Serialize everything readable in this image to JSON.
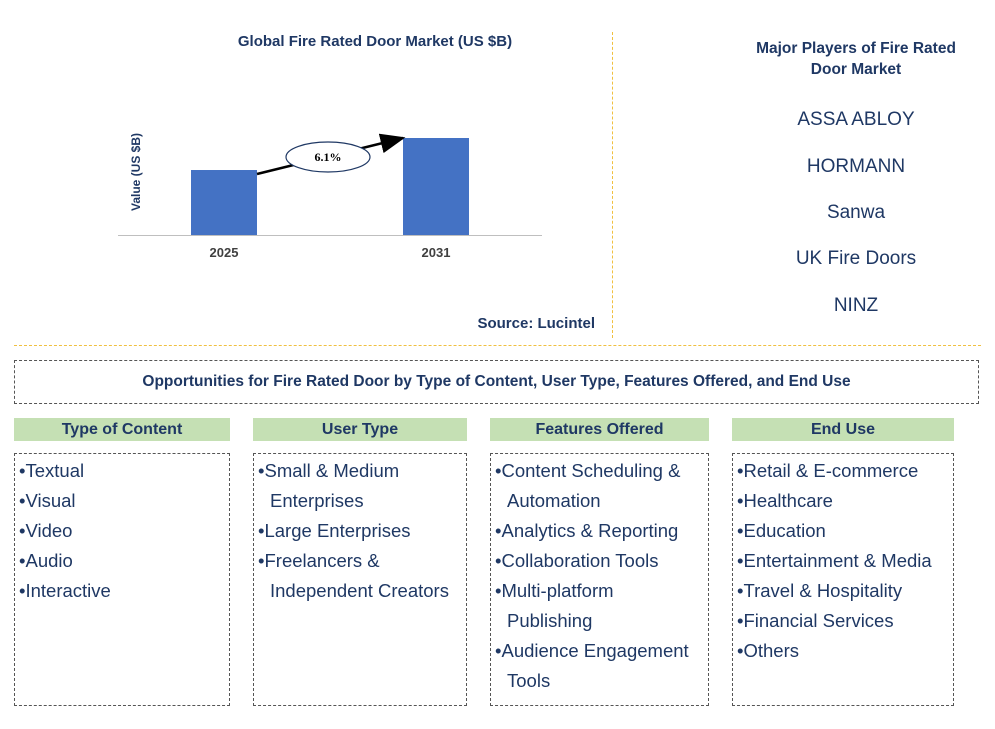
{
  "chart_data": {
    "type": "bar",
    "title": "Global Fire Rated Door Market (US $B)",
    "ylabel": "Value (US $B)",
    "categories": [
      "2025",
      "2031"
    ],
    "values": [
      0.67,
      1.0
    ],
    "cagr_label": "6.1%",
    "bar_color": "#4472c4",
    "source": "Source: Lucintel"
  },
  "players": {
    "title_line1": "Major Players of Fire Rated",
    "title_line2": "Door Market",
    "items": [
      "ASSA ABLOY",
      "HORMANN",
      "Sanwa",
      "UK Fire Doors",
      "NINZ"
    ]
  },
  "opportunities": {
    "title": "Opportunities for Fire Rated Door by Type of Content, User Type, Features Offered, and End Use",
    "categories": [
      {
        "header": "Type of Content",
        "items": [
          "Textual",
          "Visual",
          "Video",
          "Audio",
          "Interactive"
        ]
      },
      {
        "header": "User Type",
        "items": [
          "Small & Medium Enterprises",
          "Large Enterprises",
          "Freelancers & Independent Creators"
        ]
      },
      {
        "header": "Features Offered",
        "items": [
          "Content Scheduling & Automation",
          "Analytics & Reporting",
          "Collaboration Tools",
          "Multi-platform Publishing",
          "Audience Engagement Tools"
        ]
      },
      {
        "header": "End Use",
        "items": [
          "Retail & E-commerce",
          "Healthcare",
          "Education",
          "Entertainment & Media",
          "Travel & Hospitality",
          "Financial Services",
          "Others"
        ]
      }
    ]
  },
  "colors": {
    "text_navy": "#1f3864",
    "header_green": "#c5e0b4",
    "divider_gold": "#f0c040"
  }
}
